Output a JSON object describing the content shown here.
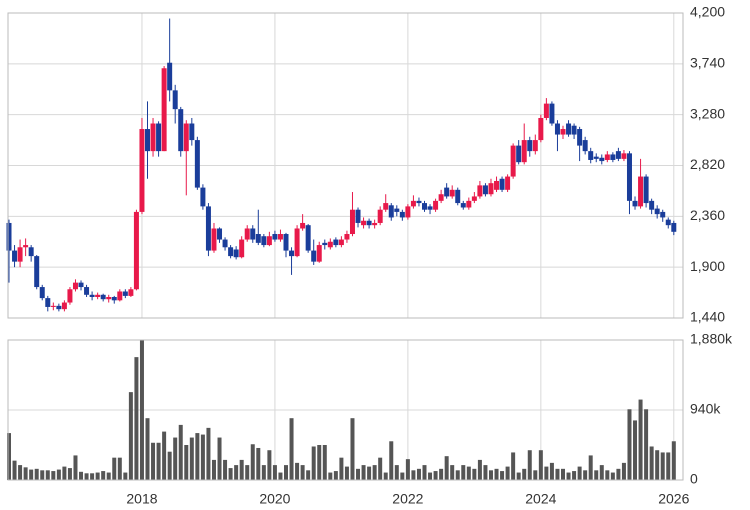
{
  "chart_data": {
    "type": "candlestick",
    "up_color": "#e8194a",
    "down_color": "#1a3d9a",
    "categories": [
      null,
      null,
      null,
      null,
      null,
      null,
      null,
      null,
      null,
      null,
      null,
      null,
      null,
      null,
      null,
      null,
      null,
      null,
      null,
      null,
      null,
      null,
      null,
      null,
      "2018",
      null,
      null,
      null,
      null,
      null,
      null,
      null,
      null,
      null,
      null,
      null,
      null,
      null,
      null,
      null,
      null,
      null,
      null,
      null,
      null,
      null,
      null,
      null,
      "2020",
      null,
      null,
      null,
      null,
      null,
      null,
      null,
      null,
      null,
      null,
      null,
      null,
      null,
      null,
      null,
      null,
      null,
      null,
      null,
      null,
      null,
      null,
      null,
      "2022",
      null,
      null,
      null,
      null,
      null,
      null,
      null,
      null,
      null,
      null,
      null,
      null,
      null,
      null,
      null,
      null,
      null,
      null,
      null,
      null,
      null,
      null,
      null,
      "2024",
      null,
      null,
      null,
      null,
      null,
      null,
      null,
      null,
      null,
      null,
      null,
      null,
      null,
      null,
      null,
      null,
      null,
      null,
      null,
      null,
      null,
      null,
      null,
      "2026"
    ],
    "open": [
      2300,
      2050,
      1950,
      2080,
      2080,
      2000,
      1720,
      1620,
      1540,
      1550,
      1520,
      1580,
      1700,
      1760,
      1720,
      1650,
      1630,
      1650,
      1610,
      1630,
      1600,
      1680,
      1640,
      1700,
      2400,
      3150,
      2950,
      3200,
      2950,
      3750,
      3500,
      3330,
      2950,
      3200,
      3050,
      2620,
      2450,
      2050,
      2250,
      2150,
      2080,
      2060,
      1990,
      2150,
      2250,
      2200,
      2180,
      2100,
      2200,
      2150,
      2200,
      2050,
      2000,
      2250,
      2280,
      2050,
      1950,
      2120,
      2080,
      2150,
      2100,
      2150,
      2200,
      2420,
      2280,
      2320,
      2280,
      2300,
      2420,
      2460,
      2430,
      2400,
      2350,
      2450,
      2500,
      2480,
      2450,
      2420,
      2500,
      2620,
      2540,
      2600,
      2480,
      2440,
      2500,
      2540,
      2640,
      2560,
      2600,
      2700,
      2600,
      2720,
      3000,
      2850,
      3050,
      2950,
      3050,
      3250,
      3380,
      3200,
      3100,
      3200,
      3180,
      3150,
      3050,
      2950,
      2900,
      2890,
      2870,
      2920,
      2950,
      2880,
      2930,
      2500,
      2450,
      2720,
      2500,
      2430,
      2400,
      2330,
      2300
    ],
    "high": [
      2330,
      2100,
      2150,
      2160,
      2100,
      2010,
      1740,
      1640,
      1580,
      1570,
      1600,
      1720,
      1790,
      1780,
      1740,
      1680,
      1670,
      1660,
      1650,
      1640,
      1700,
      1700,
      1720,
      2420,
      3250,
      3400,
      3250,
      3220,
      3720,
      4150,
      3550,
      3350,
      3230,
      3250,
      3080,
      2650,
      2480,
      2300,
      2260,
      2170,
      2100,
      2090,
      2180,
      2280,
      2280,
      2420,
      2200,
      2220,
      2230,
      2240,
      2210,
      2080,
      2280,
      2380,
      2290,
      2150,
      2130,
      2150,
      2160,
      2170,
      2180,
      2230,
      2580,
      2440,
      2350,
      2340,
      2330,
      2450,
      2560,
      2480,
      2460,
      2420,
      2470,
      2550,
      2530,
      2500,
      2470,
      2520,
      2600,
      2660,
      2640,
      2620,
      2500,
      2530,
      2580,
      2680,
      2660,
      2700,
      2720,
      2720,
      2740,
      3020,
      3050,
      3200,
      3080,
      3100,
      3280,
      3430,
      3400,
      3230,
      3180,
      3230,
      3200,
      3170,
      3080,
      2980,
      2930,
      2920,
      2950,
      2940,
      2980,
      2960,
      2950,
      2540,
      2880,
      2740,
      2520,
      2460,
      2420,
      2350,
      2320
    ],
    "low": [
      1760,
      1900,
      1900,
      2000,
      1950,
      1700,
      1600,
      1500,
      1510,
      1500,
      1500,
      1560,
      1680,
      1690,
      1630,
      1600,
      1610,
      1590,
      1580,
      1570,
      1590,
      1620,
      1630,
      1690,
      2380,
      2700,
      2900,
      2900,
      2950,
      3400,
      3200,
      2900,
      2550,
      3000,
      2600,
      2420,
      2000,
      2030,
      2120,
      2050,
      1980,
      1970,
      1980,
      2130,
      2120,
      2100,
      2080,
      2090,
      2130,
      2130,
      1990,
      1830,
      1990,
      2230,
      2030,
      1920,
      1940,
      2060,
      2060,
      2080,
      2080,
      2120,
      2180,
      2260,
      2250,
      2250,
      2250,
      2280,
      2400,
      2320,
      2360,
      2320,
      2330,
      2430,
      2450,
      2400,
      2380,
      2400,
      2480,
      2520,
      2520,
      2460,
      2420,
      2420,
      2480,
      2520,
      2540,
      2540,
      2580,
      2580,
      2580,
      2700,
      2830,
      2830,
      2900,
      2920,
      3030,
      3230,
      3180,
      2950,
      3060,
      3080,
      3060,
      2860,
      2920,
      2840,
      2850,
      2830,
      2850,
      2850,
      2860,
      2860,
      2380,
      2420,
      2430,
      2440,
      2380,
      2340,
      2310,
      2250,
      2190
    ],
    "close": [
      2050,
      1950,
      2080,
      2100,
      2000,
      1720,
      1620,
      1540,
      1550,
      1520,
      1580,
      1700,
      1760,
      1720,
      1650,
      1630,
      1650,
      1610,
      1630,
      1600,
      1680,
      1640,
      1700,
      2400,
      3150,
      2950,
      3200,
      2950,
      3700,
      3500,
      3330,
      2950,
      3200,
      3050,
      2620,
      2450,
      2050,
      2250,
      2150,
      2080,
      2000,
      1990,
      2150,
      2250,
      2150,
      2120,
      2100,
      2180,
      2150,
      2200,
      2050,
      2000,
      2250,
      2300,
      2050,
      1950,
      2100,
      2100,
      2130,
      2100,
      2150,
      2200,
      2420,
      2300,
      2320,
      2280,
      2300,
      2420,
      2480,
      2350,
      2400,
      2350,
      2450,
      2500,
      2480,
      2420,
      2420,
      2500,
      2560,
      2540,
      2600,
      2480,
      2440,
      2500,
      2540,
      2640,
      2560,
      2660,
      2680,
      2600,
      2720,
      3000,
      2850,
      3050,
      2950,
      3050,
      3250,
      3380,
      3200,
      3100,
      3150,
      3100,
      3100,
      3000,
      2950,
      2870,
      2880,
      2860,
      2920,
      2870,
      2880,
      2930,
      2500,
      2450,
      2720,
      2480,
      2420,
      2380,
      2350,
      2280,
      2220
    ],
    "ylim": [
      1440,
      4200
    ],
    "yticks": [
      {
        "value": 1440,
        "label": "1,440"
      },
      {
        "value": 1900,
        "label": "1,900"
      },
      {
        "value": 2360,
        "label": "2,360"
      },
      {
        "value": 2820,
        "label": "2,820"
      },
      {
        "value": 3280,
        "label": "3,280"
      },
      {
        "value": 3740,
        "label": "3,740"
      },
      {
        "value": 4200,
        "label": "4,200"
      }
    ],
    "volume": {
      "color": "#555555",
      "values": [
        630,
        260,
        200,
        170,
        140,
        150,
        130,
        130,
        120,
        140,
        180,
        160,
        330,
        110,
        90,
        90,
        100,
        120,
        100,
        300,
        300,
        100,
        1180,
        1650,
        1880,
        830,
        500,
        500,
        650,
        380,
        570,
        740,
        470,
        570,
        630,
        610,
        700,
        270,
        570,
        270,
        160,
        200,
        270,
        200,
        480,
        430,
        200,
        400,
        200,
        100,
        200,
        830,
        230,
        200,
        130,
        450,
        470,
        470,
        100,
        120,
        300,
        180,
        830,
        150,
        200,
        180,
        200,
        300,
        100,
        520,
        200,
        100,
        280,
        130,
        150,
        200,
        100,
        120,
        150,
        320,
        200,
        130,
        200,
        180,
        150,
        270,
        200,
        130,
        150,
        120,
        180,
        370,
        100,
        150,
        400,
        130,
        400,
        180,
        230,
        150,
        150,
        100,
        120,
        180,
        130,
        330,
        130,
        200,
        130,
        100,
        150,
        230,
        950,
        800,
        1080,
        950,
        450,
        400,
        370,
        370,
        520
      ],
      "ylim": [
        0,
        1880
      ],
      "yticks": [
        0,
        {
          "value": 940,
          "label": "940k"
        },
        {
          "value": 1880,
          "label": "1,880k"
        }
      ]
    }
  }
}
